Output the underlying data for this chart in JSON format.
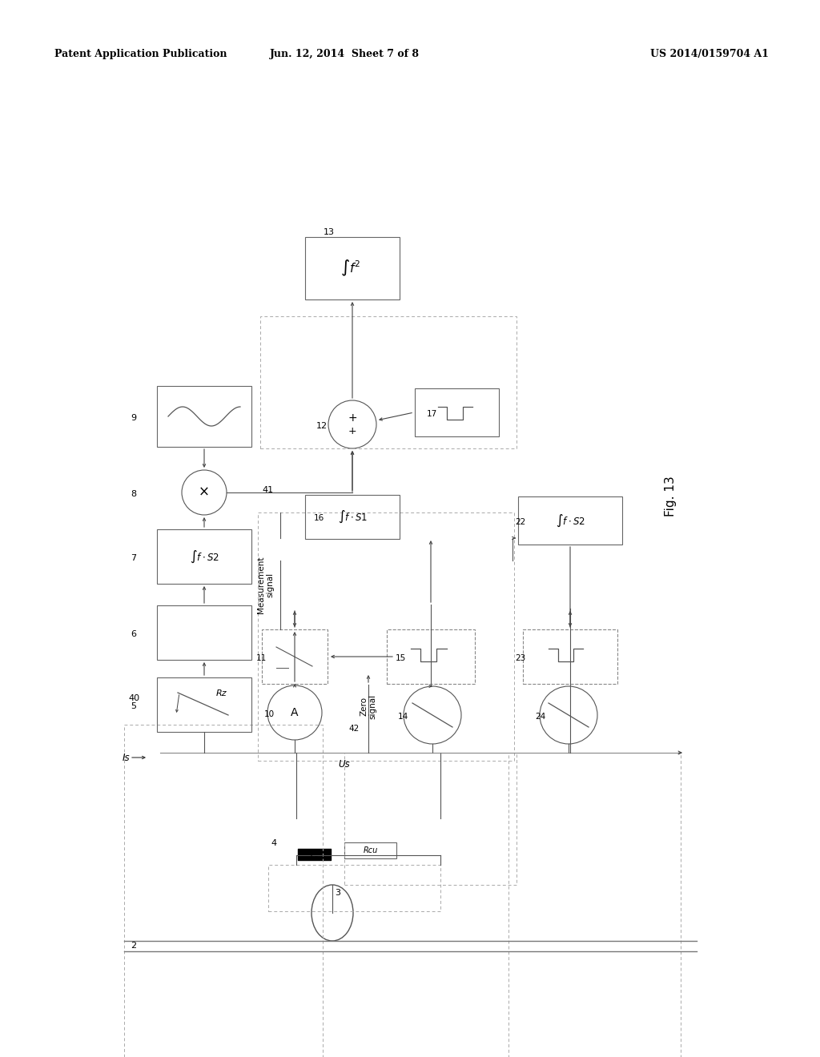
{
  "bg_color": "#ffffff",
  "header_left": "Patent Application Publication",
  "header_mid": "Jun. 12, 2014  Sheet 7 of 8",
  "header_right": "US 2014/0159704 A1",
  "fig_label": "Fig. 13"
}
